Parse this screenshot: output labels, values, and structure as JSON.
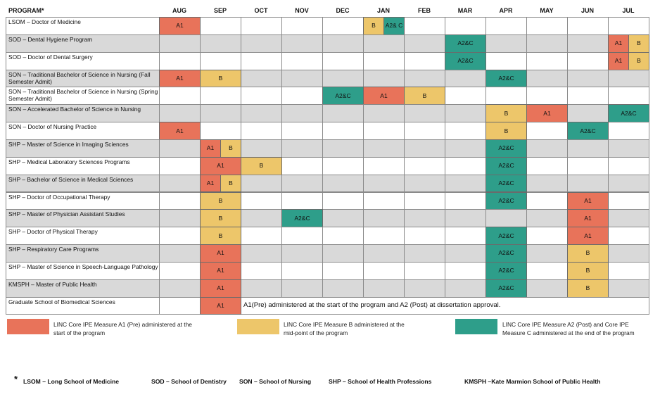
{
  "colors": {
    "a1": "#E8735A",
    "b": "#EDC66A",
    "a2c": "#2E9E8A",
    "stripe": "#D9D9D9",
    "white": "#FFFFFF"
  },
  "header": {
    "program": "PROGRAM*",
    "months": [
      "AUG",
      "SEP",
      "OCT",
      "NOV",
      "DEC",
      "JAN",
      "FEB",
      "MAR",
      "APR",
      "MAY",
      "JUN",
      "JUL"
    ]
  },
  "programs": [
    {
      "label": "LSOM – Doctor of Medicine",
      "tags": [
        {
          "m": 0,
          "t": "A1",
          "c": "a1"
        },
        {
          "m": 5,
          "t": "B",
          "c": "b",
          "h": 0
        },
        {
          "m": 5,
          "t": "A2& C",
          "c": "a2c",
          "h": 1
        }
      ]
    },
    {
      "label": "SOD – Dental Hygiene Program",
      "tags": [
        {
          "m": 7,
          "t": "A2&C",
          "c": "a2c"
        },
        {
          "m": 11,
          "t": "A1",
          "c": "a1",
          "h": 0
        },
        {
          "m": 11,
          "t": "B",
          "c": "b",
          "h": 1
        }
      ]
    },
    {
      "label": "SOD – Doctor of Dental Surgery",
      "tags": [
        {
          "m": 7,
          "t": "A2&C",
          "c": "a2c"
        },
        {
          "m": 11,
          "t": "A1",
          "c": "a1",
          "h": 0
        },
        {
          "m": 11,
          "t": "B",
          "c": "b",
          "h": 1
        }
      ]
    },
    {
      "label": "SON – Traditional Bachelor of Science in Nursing (Fall Semester Admit)",
      "tags": [
        {
          "m": 0,
          "t": "A1",
          "c": "a1"
        },
        {
          "m": 1,
          "t": "B",
          "c": "b"
        },
        {
          "m": 8,
          "t": "A2&C",
          "c": "a2c"
        }
      ]
    },
    {
      "label": "SON – Traditional Bachelor of Science in Nursing (Spring Semester Admit)",
      "tags": [
        {
          "m": 4,
          "t": "A2&C",
          "c": "a2c"
        },
        {
          "m": 5,
          "t": "A1",
          "c": "a1"
        },
        {
          "m": 6,
          "t": "B",
          "c": "b"
        }
      ]
    },
    {
      "label": "SON – Accelerated Bachelor of Science in Nursing",
      "tags": [
        {
          "m": 8,
          "t": "B",
          "c": "b"
        },
        {
          "m": 9,
          "t": "A1",
          "c": "a1"
        },
        {
          "m": 11,
          "t": "A2&C",
          "c": "a2c"
        }
      ]
    },
    {
      "label": "SON – Doctor of Nursing Practice",
      "tags": [
        {
          "m": 0,
          "t": "A1",
          "c": "a1"
        },
        {
          "m": 8,
          "t": "B",
          "c": "b"
        },
        {
          "m": 10,
          "t": "A2&C",
          "c": "a2c"
        }
      ]
    },
    {
      "label": "SHP – Master of Science in Imaging Sciences",
      "tags": [
        {
          "m": 1,
          "t": "A1",
          "c": "a1",
          "h": 0
        },
        {
          "m": 1,
          "t": "B",
          "c": "b",
          "h": 1
        },
        {
          "m": 8,
          "t": "A2&C",
          "c": "a2c"
        }
      ]
    },
    {
      "label": "SHP – Medical Laboratory Sciences Programs",
      "tags": [
        {
          "m": 1,
          "t": "A1",
          "c": "a1"
        },
        {
          "m": 2,
          "t": "B",
          "c": "b"
        },
        {
          "m": 8,
          "t": "A2&C",
          "c": "a2c"
        }
      ]
    },
    {
      "label": "SHP – Bachelor of Science in Medical Sciences",
      "tags": [
        {
          "m": 1,
          "t": "A1",
          "c": "a1",
          "h": 0
        },
        {
          "m": 1,
          "t": "B",
          "c": "b",
          "h": 1
        },
        {
          "m": 8,
          "t": "A2&C",
          "c": "a2c"
        }
      ]
    },
    {
      "label": "SHP – Doctor of Occupational Therapy",
      "tags": [
        {
          "m": 1,
          "t": "B",
          "c": "b"
        },
        {
          "m": 8,
          "t": "A2&C",
          "c": "a2c"
        },
        {
          "m": 10,
          "t": "A1",
          "c": "a1"
        }
      ]
    },
    {
      "label": "SHP – Master of Physician Assistant Studies",
      "tags": [
        {
          "m": 1,
          "t": "B",
          "c": "b"
        },
        {
          "m": 3,
          "t": "A2&C",
          "c": "a2c"
        },
        {
          "m": 10,
          "t": "A1",
          "c": "a1"
        }
      ]
    },
    {
      "label": "SHP – Doctor of Physical Therapy",
      "tags": [
        {
          "m": 1,
          "t": "B",
          "c": "b"
        },
        {
          "m": 8,
          "t": "A2&C",
          "c": "a2c"
        },
        {
          "m": 10,
          "t": "A1",
          "c": "a1"
        }
      ]
    },
    {
      "label": "SHP – Respiratory Care Programs",
      "tags": [
        {
          "m": 1,
          "t": "A1",
          "c": "a1"
        },
        {
          "m": 8,
          "t": "A2&C",
          "c": "a2c"
        },
        {
          "m": 10,
          "t": "B",
          "c": "b"
        }
      ]
    },
    {
      "label": "SHP – Master of Science in Speech-Language Pathology",
      "tags": [
        {
          "m": 1,
          "t": "A1",
          "c": "a1"
        },
        {
          "m": 8,
          "t": "A2&C",
          "c": "a2c"
        },
        {
          "m": 10,
          "t": "B",
          "c": "b"
        }
      ]
    },
    {
      "label": "KMSPH – Master of Public Health",
      "tags": [
        {
          "m": 1,
          "t": "A1",
          "c": "a1"
        },
        {
          "m": 8,
          "t": "A2&C",
          "c": "a2c"
        },
        {
          "m": 10,
          "t": "B",
          "c": "b"
        }
      ]
    },
    {
      "label": "Graduate School of Biomedical Sciences",
      "tags": [
        {
          "m": 1,
          "t": "A1",
          "c": "a1"
        }
      ],
      "note": "A1(Pre) administered at the start of the program and A2 (Post) at dissertation approval."
    }
  ],
  "legend": [
    {
      "color": "a1",
      "text": "LINC Core IPE Measure A1 (Pre) administered at the start of the program"
    },
    {
      "color": "b",
      "text": "LINC Core IPE Measure B administered at the mid-point of the program"
    },
    {
      "color": "a2c",
      "text": "LINC Core IPE Measure A2 (Post) and Core IPE Measure C administered at the end of the program"
    }
  ],
  "footnote": {
    "star": "*",
    "items": [
      "LSOM – Long School of Medicine",
      "SOD – School of Dentistry",
      "SON – School of Nursing",
      "SHP – School of Health Professions",
      "KMSPH –Kate Marmion  School of Public Health"
    ]
  }
}
